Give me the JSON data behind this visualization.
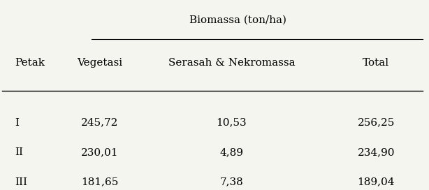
{
  "col_header_top": "Biomassa (ton/ha)",
  "col_header_sub": [
    "Vegetasi",
    "Serasah & Nekromassa",
    "Total"
  ],
  "row_header": "Petak",
  "rows": [
    [
      "I",
      "245,72",
      "10,53",
      "256,25"
    ],
    [
      "II",
      "230,01",
      "4,89",
      "234,90"
    ],
    [
      "III",
      "181,65",
      "7,38",
      "189,04"
    ]
  ],
  "bg_color": "#f5f5f0",
  "font_size": 11
}
